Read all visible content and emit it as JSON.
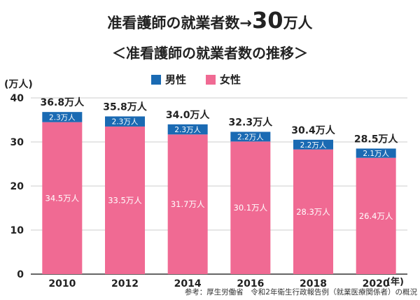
{
  "header": {
    "title_prefix": "准看護師の就業者数→",
    "title_number": "30",
    "title_suffix": "万人",
    "subtitle": "＜准看護師の就業者数の推移＞"
  },
  "legend": {
    "male_label": "男性",
    "female_label": "女性"
  },
  "axis": {
    "y_unit": "(万人)",
    "x_unit": "(年)"
  },
  "source": "参考：厚生労働省　令和2年衛生行政報告例（就業医療関係者）の概況",
  "colors": {
    "male": "#1a6ab3",
    "female": "#f06a93",
    "grid": "#cccccc",
    "axis": "#333333"
  },
  "chart_data": {
    "type": "bar",
    "stacked": true,
    "categories": [
      "2010",
      "2012",
      "2014",
      "2016",
      "2018",
      "2020"
    ],
    "series": [
      {
        "name": "女性",
        "values": [
          34.5,
          33.5,
          31.7,
          30.1,
          28.3,
          26.4
        ],
        "labels": [
          "34.5万人",
          "33.5万人",
          "31.7万人",
          "30.1万人",
          "28.3万人",
          "26.4万人"
        ]
      },
      {
        "name": "男性",
        "values": [
          2.3,
          2.3,
          2.3,
          2.2,
          2.2,
          2.1
        ],
        "labels": [
          "2.3万人",
          "2.3万人",
          "2.3万人",
          "2.2万人",
          "2.2万人",
          "2.1万人"
        ]
      }
    ],
    "totals": [
      36.8,
      35.8,
      34.0,
      32.3,
      30.4,
      28.5
    ],
    "total_labels": [
      "36.8万人",
      "35.8万人",
      "34.0万人",
      "32.3万人",
      "30.4万人",
      "28.5万人"
    ],
    "yticks": [
      "0",
      "10",
      "20",
      "30",
      "40"
    ],
    "ylim": [
      0,
      40
    ],
    "grid": true,
    "legend_position": "top"
  }
}
